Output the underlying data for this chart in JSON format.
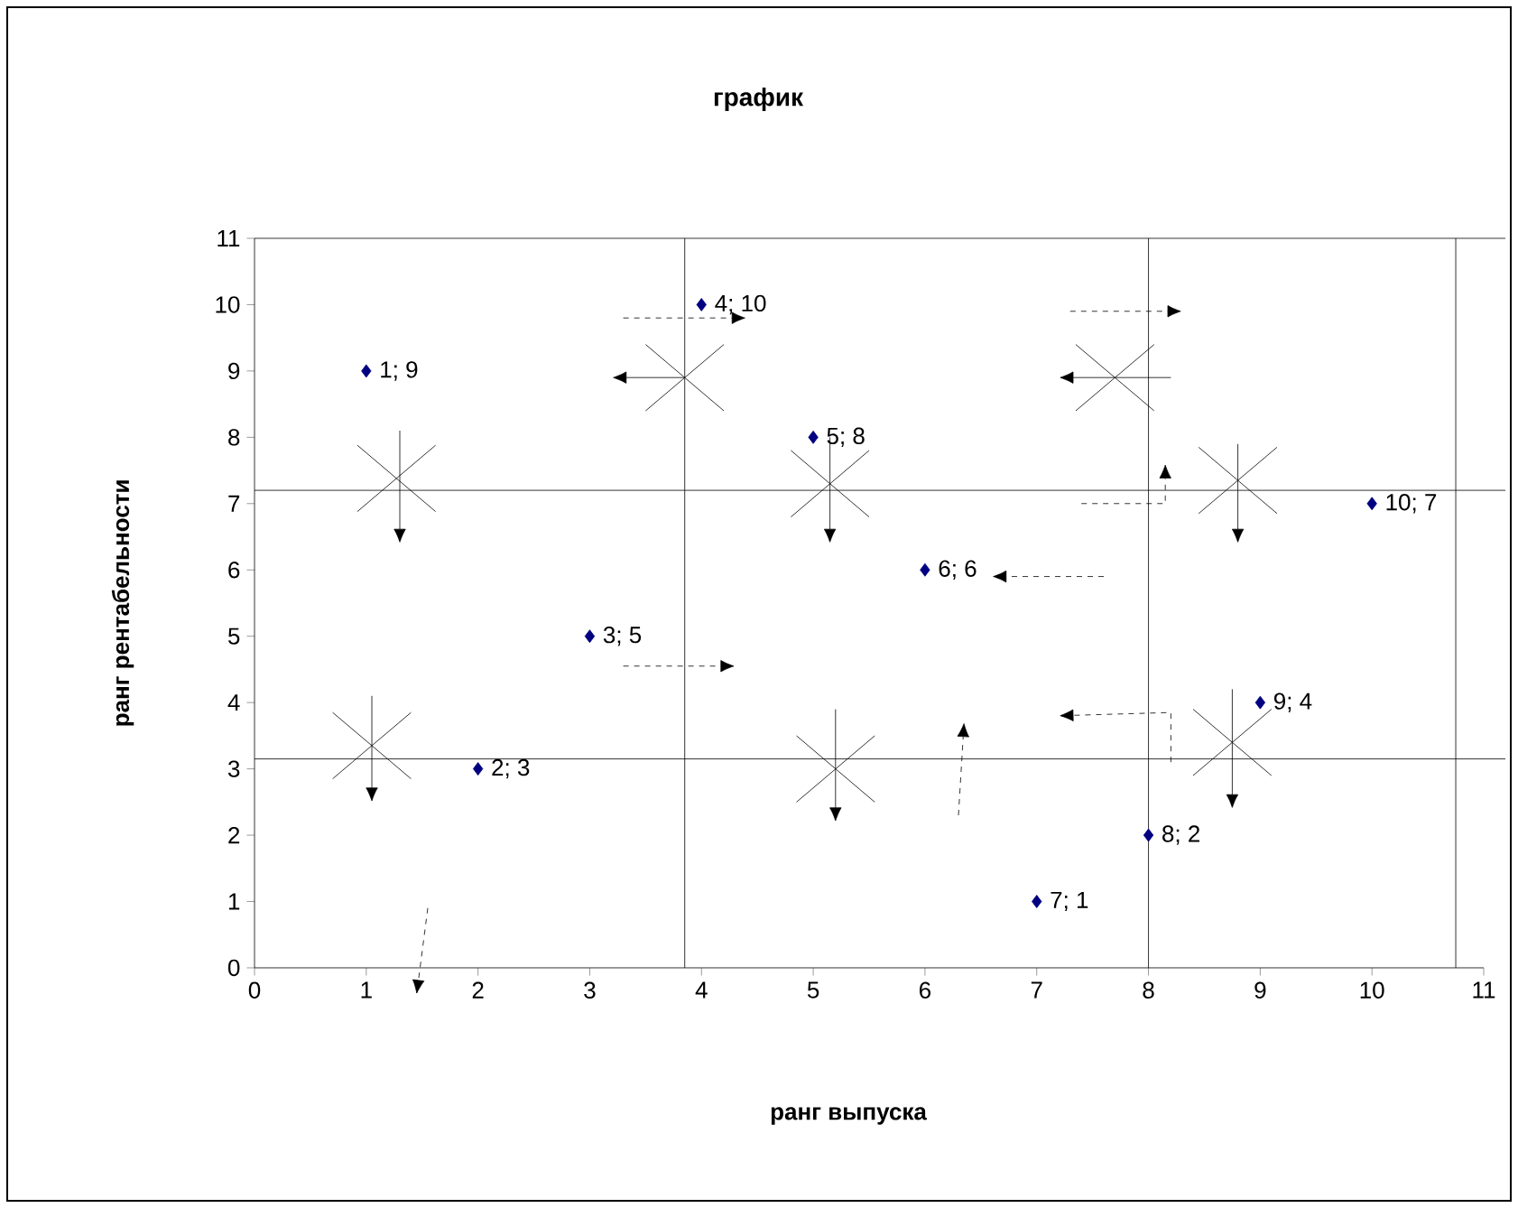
{
  "chart_data": {
    "type": "scatter",
    "title": "график",
    "xlabel": "ранг выпуска",
    "ylabel": "ранг рентабельности",
    "x": [
      1,
      2,
      3,
      4,
      5,
      6,
      7,
      8,
      9,
      10
    ],
    "series": [
      {
        "color": "#000080",
        "values": [
          9,
          3,
          5,
          10,
          8,
          6,
          1,
          2,
          4,
          7
        ],
        "value_labels": [
          "1; 9",
          "2; 3",
          "3; 5",
          "4; 10",
          "5; 8",
          "6; 6",
          "7; 1",
          "8; 2",
          "9; 4",
          "10; 7"
        ]
      }
    ],
    "marker": "diamond",
    "xlim": [
      0,
      11
    ],
    "ylim": [
      0,
      11
    ],
    "xticks": [
      0,
      1,
      2,
      3,
      4,
      5,
      6,
      7,
      8,
      9,
      10,
      11
    ],
    "yticks": [
      0,
      1,
      2,
      3,
      4,
      5,
      6,
      7,
      8,
      9,
      10,
      11
    ],
    "ref_lines": [
      {
        "axis": "y",
        "value": 7.2
      },
      {
        "axis": "y",
        "value": 3.15
      },
      {
        "axis": "x",
        "value": 3.85
      },
      {
        "axis": "x",
        "value": 8
      },
      {
        "axis": "x",
        "value": 10.75
      }
    ],
    "grid": false
  }
}
